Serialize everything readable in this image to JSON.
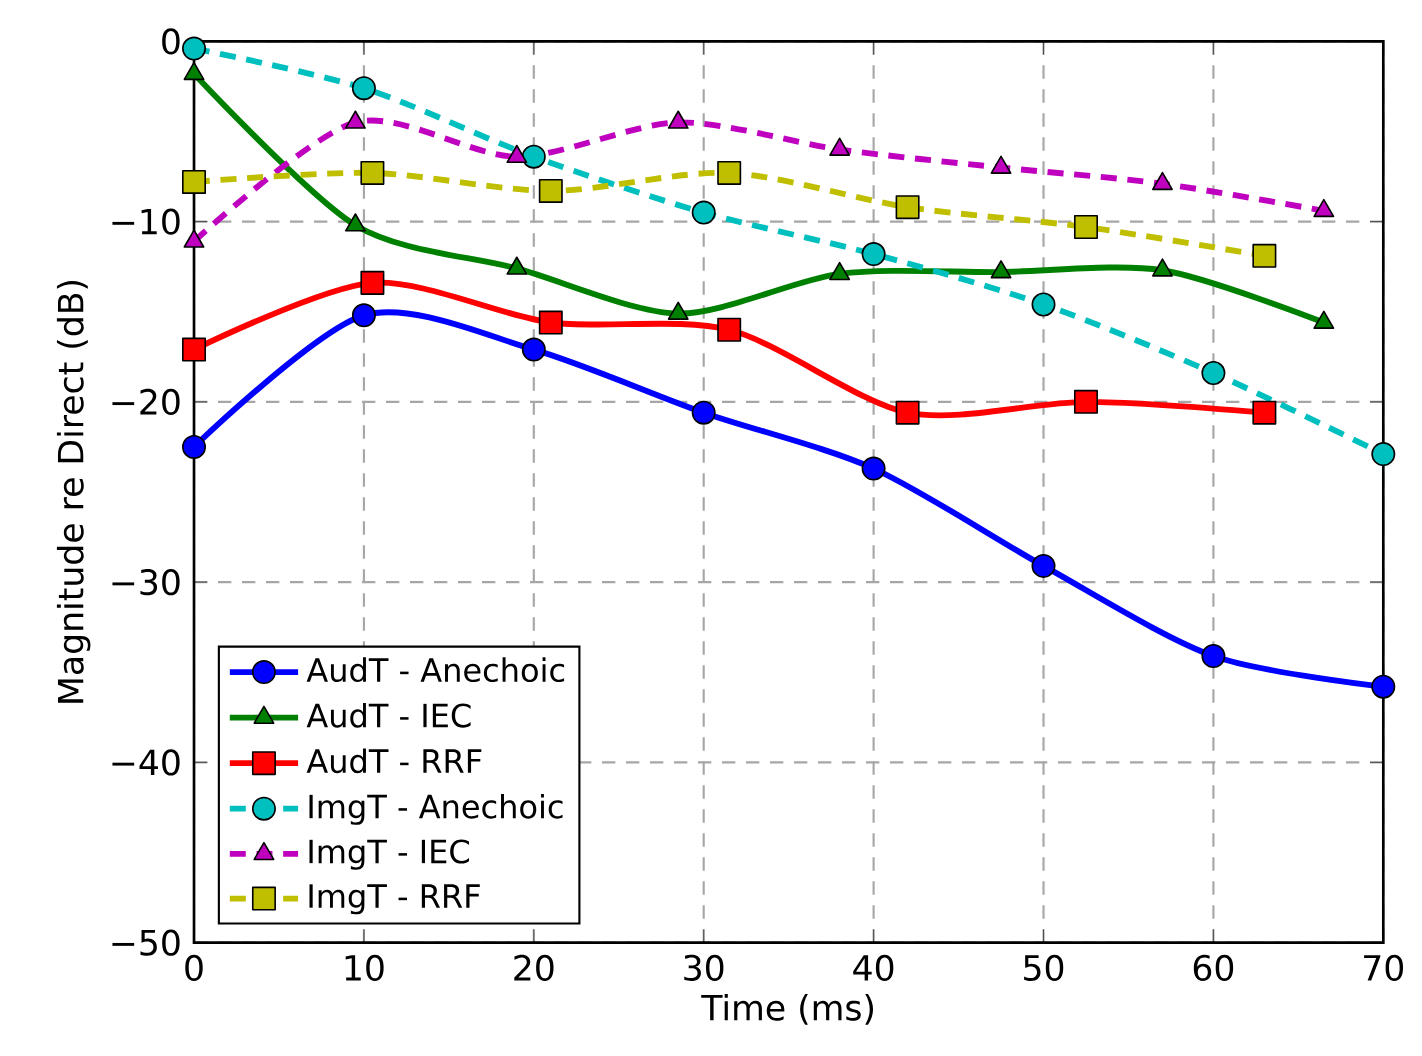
{
  "chart_data": {
    "type": "line",
    "xlabel": "Time (ms)",
    "ylabel": "Magnitude re Direct (dB)",
    "xlim": [
      0,
      70
    ],
    "ylim": [
      -50,
      0
    ],
    "xticks": [
      0,
      10,
      20,
      30,
      40,
      50,
      60,
      70
    ],
    "yticks": [
      {
        "value": -50,
        "label": "−50"
      },
      {
        "value": -40,
        "label": "−40"
      },
      {
        "value": -30,
        "label": "−30"
      },
      {
        "value": -20,
        "label": "−20"
      },
      {
        "value": -10,
        "label": "−10"
      },
      0
    ],
    "grid": true,
    "legend": "bottom left",
    "series": [
      {
        "name": "AudT - Anechoic",
        "color": "#0000ff",
        "marker": "circle",
        "line_style": "solid",
        "x": [
          0,
          10,
          20,
          30,
          40,
          50,
          60,
          70
        ],
        "values": [
          -22.5,
          -15.2,
          -17.1,
          -20.6,
          -23.7,
          -29.1,
          -34.1,
          -35.8
        ]
      },
      {
        "name": "AudT - IEC",
        "color": "#008000",
        "marker": "triangle",
        "line_style": "solid",
        "x": [
          0,
          9.5,
          19,
          28.5,
          38,
          47.5,
          57,
          66.5
        ],
        "values": [
          -1.8,
          -10.2,
          -12.6,
          -15.1,
          -12.9,
          -12.8,
          -12.7,
          -15.6
        ]
      },
      {
        "name": "AudT - RRF",
        "color": "#ff0000",
        "marker": "square",
        "line_style": "solid",
        "x": [
          0,
          10.5,
          21,
          31.5,
          42,
          52.5,
          63
        ],
        "values": [
          -17.1,
          -13.4,
          -15.6,
          -16.0,
          -20.6,
          -20.0,
          -20.6
        ]
      },
      {
        "name": "ImgT - Anechoic",
        "color": "#00bfbf",
        "marker": "circle",
        "line_style": "dashed",
        "x": [
          0,
          10,
          20,
          30,
          40,
          50,
          60,
          70
        ],
        "values": [
          -0.4,
          -2.6,
          -6.4,
          -9.5,
          -11.8,
          -14.6,
          -18.4,
          -22.9
        ]
      },
      {
        "name": "ImgT - IEC",
        "color": "#bf00bf",
        "marker": "triangle",
        "line_style": "dashed",
        "x": [
          0,
          9.5,
          19,
          28.5,
          38,
          47.5,
          57,
          66.5
        ],
        "values": [
          -11.1,
          -4.5,
          -6.4,
          -4.5,
          -6.0,
          -7.0,
          -7.9,
          -9.4
        ]
      },
      {
        "name": "ImgT - RRF",
        "color": "#bfbf00",
        "marker": "square",
        "line_style": "dashed",
        "x": [
          0,
          10.5,
          21,
          31.5,
          42,
          52.5,
          63
        ],
        "values": [
          -7.8,
          -7.3,
          -8.3,
          -7.3,
          -9.2,
          -10.3,
          -11.9
        ]
      }
    ]
  }
}
